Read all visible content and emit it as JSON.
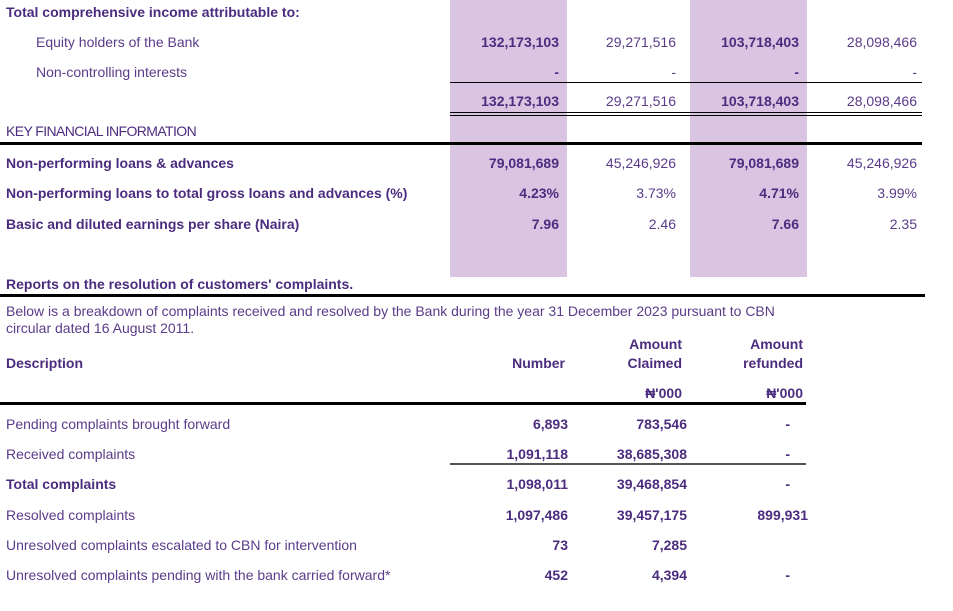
{
  "income": {
    "title": "Total comprehensive income attributable to:",
    "rows": [
      {
        "label": "Equity holders of the Bank",
        "values": [
          "132,173,103",
          "29,271,516",
          "103,718,403",
          "28,098,466"
        ]
      },
      {
        "label": "Non-controlling interests",
        "values": [
          "-",
          "-",
          "-",
          "-"
        ]
      },
      {
        "label": "",
        "values": [
          "132,173,103",
          "29,271,516",
          "103,718,403",
          "28,098,466"
        ]
      }
    ]
  },
  "key_info": {
    "title": "KEY FINANCIAL INFORMATION",
    "rows": [
      {
        "label": "Non-performing loans & advances",
        "values": [
          "79,081,689",
          "45,246,926",
          "79,081,689",
          "45,246,926"
        ]
      },
      {
        "label": "Non-performing loans to total gross loans and advances (%)",
        "values": [
          "4.23%",
          "3.73%",
          "4.71%",
          "3.99%"
        ]
      },
      {
        "label": "Basic and diluted earnings per share (Naira)",
        "values": [
          "7.96",
          "2.46",
          "7.66",
          "2.35"
        ]
      }
    ]
  },
  "complaints": {
    "title": "Reports on the resolution of customers' complaints.",
    "intro_line1": "Below is a breakdown of complaints received and resolved by the Bank during the year 31 December 2023 pursuant to CBN",
    "intro_line2": "circular dated 16 August 2011.",
    "headers": {
      "description": "Description",
      "number": "Number",
      "claimed_1": "Amount",
      "claimed_2": "Claimed",
      "refunded_1": "Amount",
      "refunded_2": "refunded",
      "unit_claimed": "₦'000",
      "unit_refunded": "₦'000"
    },
    "rows": [
      {
        "label": "Pending complaints brought forward",
        "number": "6,893",
        "claimed": "783,546",
        "refunded": "-"
      },
      {
        "label": "Received complaints",
        "number": "1,091,118",
        "claimed": "38,685,308",
        "refunded": "-"
      },
      {
        "label": "Total complaints",
        "number": "1,098,011",
        "claimed": "39,468,854",
        "refunded": "-"
      },
      {
        "label": "Resolved complaints",
        "number": "1,097,486",
        "claimed": "39,457,175",
        "refunded": "899,931"
      },
      {
        "label": "Unresolved complaints escalated to CBN for intervention",
        "number": "73",
        "claimed": "7,285",
        "refunded": ""
      },
      {
        "label": "Unresolved complaints pending with the bank carried forward*",
        "number": "452",
        "claimed": "4,394",
        "refunded": "-"
      }
    ]
  }
}
